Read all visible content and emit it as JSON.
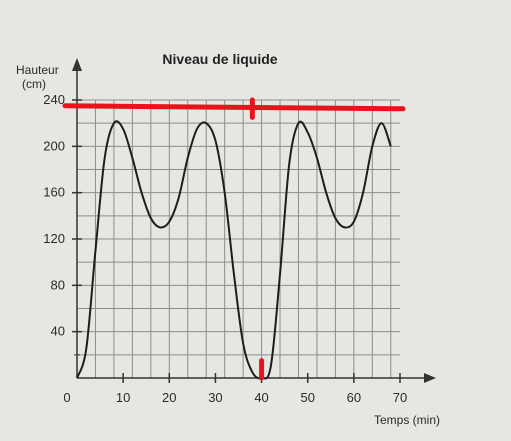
{
  "chart_data": {
    "type": "line",
    "title": "Niveau de liquide",
    "ylabel_line1": "Hauteur",
    "ylabel_line2": "(cm)",
    "xlabel": "Temps (min)",
    "xlim": [
      0,
      70
    ],
    "ylim": [
      0,
      240
    ],
    "x_ticks": [
      0,
      10,
      20,
      30,
      40,
      50,
      60,
      70
    ],
    "x_tick_labels": [
      "0",
      "10",
      "20",
      "30",
      "40",
      "50",
      "60",
      "70"
    ],
    "y_ticks": [
      40,
      80,
      120,
      160,
      200,
      240
    ],
    "y_tick_labels": [
      "40",
      "80",
      "120",
      "160",
      "200",
      "240"
    ],
    "grid": true,
    "grid_x_step": 4,
    "grid_y_step": 20,
    "series": [
      {
        "x": [
          0,
          2,
          4,
          6,
          8,
          10,
          12,
          14,
          16,
          18,
          20,
          22,
          24,
          26,
          28,
          30,
          32,
          34,
          36,
          38,
          40,
          42,
          44,
          46,
          48,
          50,
          52,
          54,
          56,
          58,
          60,
          62,
          64,
          66,
          68
        ],
        "y": [
          0,
          25,
          110,
          190,
          220,
          215,
          190,
          160,
          138,
          130,
          135,
          155,
          190,
          215,
          220,
          205,
          160,
          90,
          30,
          5,
          0,
          10,
          90,
          185,
          220,
          212,
          190,
          160,
          138,
          130,
          135,
          160,
          200,
          220,
          200
        ]
      }
    ],
    "annotations": {
      "color": "#e8141c",
      "horizontal_line_y": 235,
      "horizontal_line_x": [
        0,
        70
      ],
      "vertical_marks": [
        {
          "x": 38,
          "y": [
            225,
            240
          ]
        },
        {
          "x": 40,
          "y": [
            0,
            15
          ]
        }
      ]
    }
  }
}
